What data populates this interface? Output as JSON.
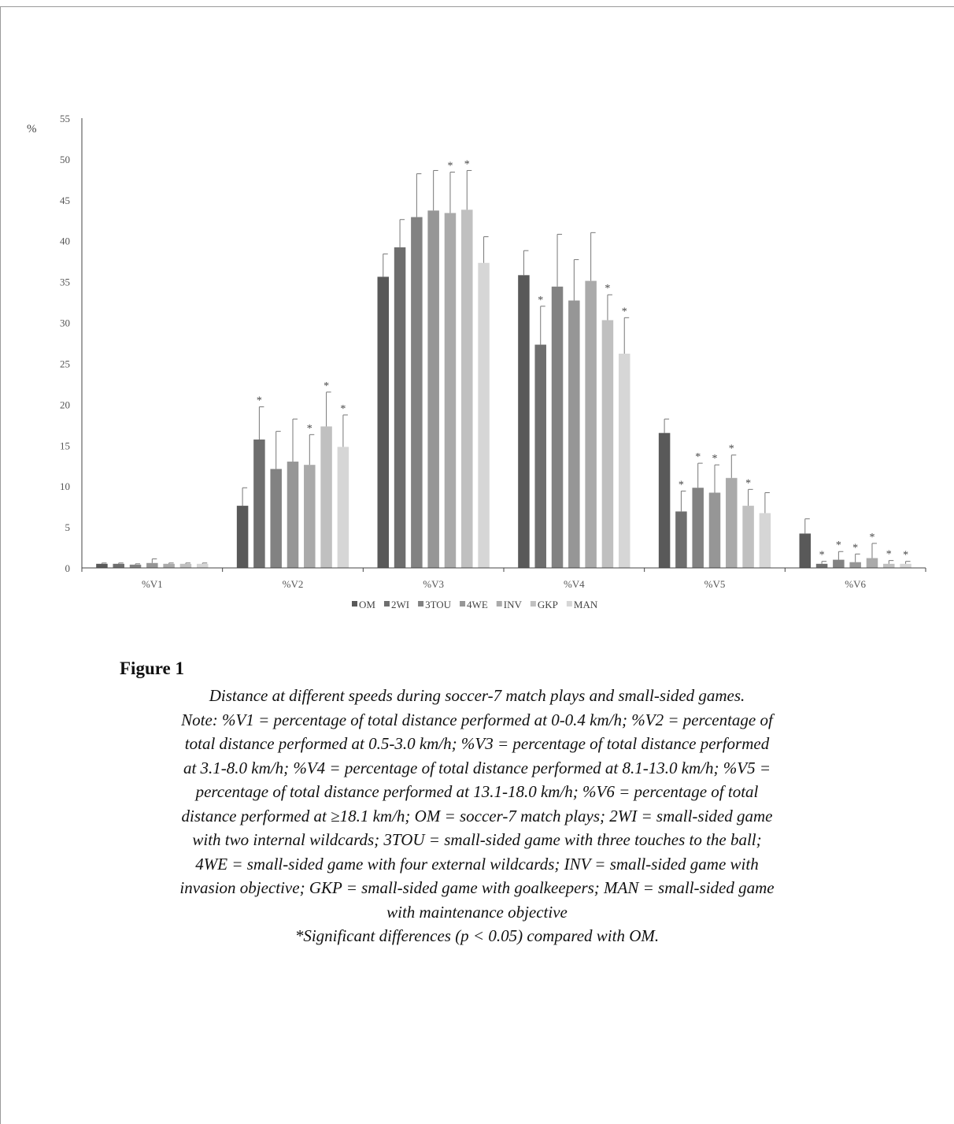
{
  "chart_data": {
    "type": "bar",
    "ylabel": "%",
    "ylim": [
      0,
      55
    ],
    "yticks": [
      0,
      5,
      10,
      15,
      20,
      25,
      30,
      35,
      40,
      45,
      50,
      55
    ],
    "grid": false,
    "legend_position": "bottom",
    "categories": [
      "%V1",
      "%V2",
      "%V3",
      "%V4",
      "%V5",
      "%V6"
    ],
    "series": [
      {
        "name": "OM",
        "color": "#595959",
        "values": [
          0.5,
          7.6,
          35.6,
          35.8,
          16.5,
          4.2
        ],
        "errors": [
          0.1,
          2.2,
          2.8,
          3.0,
          1.7,
          1.8
        ],
        "significant": [
          false,
          false,
          false,
          false,
          false,
          false
        ]
      },
      {
        "name": "2WI",
        "color": "#6e6e6e",
        "values": [
          0.5,
          15.7,
          39.2,
          27.3,
          6.9,
          0.5
        ],
        "errors": [
          0.1,
          4.0,
          3.4,
          4.7,
          2.5,
          0.3
        ],
        "significant": [
          false,
          true,
          false,
          true,
          true,
          true
        ]
      },
      {
        "name": "3TOU",
        "color": "#828282",
        "values": [
          0.4,
          12.1,
          42.9,
          34.4,
          9.8,
          1.0
        ],
        "errors": [
          0.1,
          4.6,
          5.3,
          6.4,
          3.0,
          1.0
        ],
        "significant": [
          false,
          false,
          false,
          false,
          true,
          true
        ]
      },
      {
        "name": "4WE",
        "color": "#969696",
        "values": [
          0.6,
          13.0,
          43.7,
          32.7,
          9.2,
          0.7
        ],
        "errors": [
          0.5,
          5.2,
          4.9,
          5.0,
          3.4,
          1.0
        ],
        "significant": [
          false,
          false,
          false,
          false,
          true,
          true
        ]
      },
      {
        "name": "INV",
        "color": "#aaaaaa",
        "values": [
          0.5,
          12.6,
          43.4,
          35.1,
          11.0,
          1.2
        ],
        "errors": [
          0.1,
          3.7,
          5.0,
          5.9,
          2.8,
          1.8
        ],
        "significant": [
          false,
          true,
          true,
          false,
          true,
          true
        ]
      },
      {
        "name": "GKP",
        "color": "#c0c0c0",
        "values": [
          0.5,
          17.3,
          43.8,
          30.3,
          7.6,
          0.5
        ],
        "errors": [
          0.1,
          4.2,
          4.8,
          3.1,
          2.0,
          0.4
        ],
        "significant": [
          false,
          true,
          true,
          true,
          true,
          true
        ]
      },
      {
        "name": "MAN",
        "color": "#d6d6d6",
        "values": [
          0.5,
          14.8,
          37.3,
          26.2,
          6.7,
          0.5
        ],
        "errors": [
          0.1,
          3.9,
          3.2,
          4.4,
          2.5,
          0.3
        ],
        "significant": [
          false,
          true,
          false,
          true,
          false,
          true
        ]
      }
    ]
  },
  "figure": {
    "label": "Figure 1",
    "caption_lines": [
      "Distance at different speeds during soccer-7 match plays and small-sided games.",
      "Note: %V1 = percentage of total distance performed at 0-0.4 km/h; %V2 = percentage of",
      "total distance performed at 0.5-3.0 km/h; %V3 = percentage of total distance performed",
      "at 3.1-8.0 km/h; %V4 = percentage of total distance performed at 8.1-13.0 km/h; %V5 =",
      "percentage of total distance performed at 13.1-18.0 km/h; %V6 = percentage of total",
      "distance performed at ≥18.1 km/h; OM = soccer-7 match plays; 2WI = small-sided game",
      "with two internal wildcards; 3TOU = small-sided game with three touches to the ball;",
      "4WE = small-sided game with four external wildcards; INV = small-sided game with",
      "invasion objective; GKP = small-sided game with goalkeepers; MAN = small-sided game",
      "with maintenance objective",
      "*Significant differences (p < 0.05) compared with OM."
    ]
  }
}
